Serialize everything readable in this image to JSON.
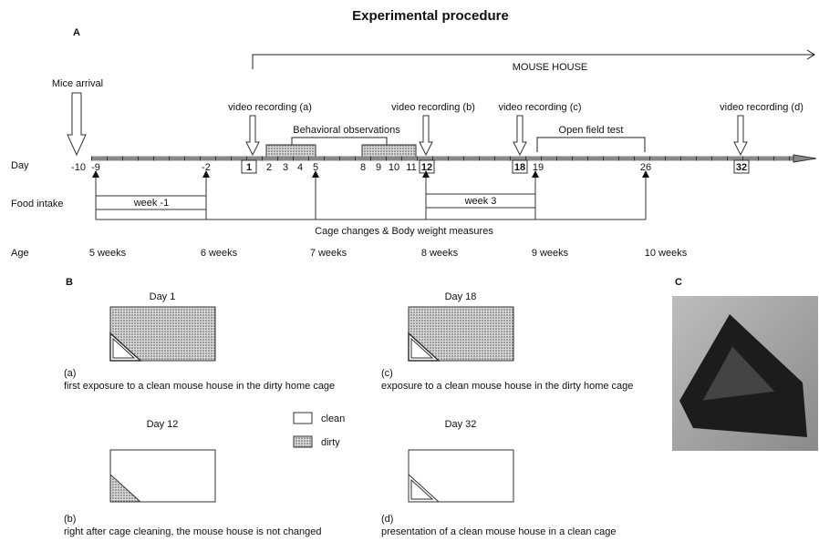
{
  "title": "Experimental procedure",
  "panel_a": {
    "label": "A",
    "mouse_house": "MOUSE HOUSE",
    "mice_arrival": "Mice arrival",
    "video_recordings": [
      "video recording (a)",
      "video recording (b)",
      "video recording (c)",
      "video recording (d)"
    ],
    "behavioral_observations": "Behavioral observations",
    "open_field_test": "Open field test",
    "row_labels": {
      "day": "Day",
      "food_intake": "Food intake",
      "age": "Age"
    },
    "days": [
      -10,
      -9,
      -2,
      1,
      2,
      3,
      4,
      5,
      8,
      9,
      10,
      11,
      12,
      18,
      19,
      26,
      32
    ],
    "food_intake_weeks": [
      "week -1",
      "week 3"
    ],
    "cage_changes": "Cage changes & Body weight measures",
    "ages": [
      "5 weeks",
      "6 weeks",
      "7 weeks",
      "8 weeks",
      "9 weeks",
      "10 weeks"
    ]
  },
  "panel_b": {
    "label": "B",
    "cages": [
      {
        "day": "Day 1",
        "letter": "(a)",
        "caption": "first exposure to a clean mouse house in the dirty home cage"
      },
      {
        "day": "Day 18",
        "letter": "(c)",
        "caption": "exposure to a clean mouse house in the dirty home cage"
      },
      {
        "day": "Day 12",
        "letter": "(b)",
        "caption": "right after cage cleaning, the mouse house is not changed"
      },
      {
        "day": "Day 32",
        "letter": "(d)",
        "caption": "presentation of a clean mouse house in a clean cage"
      }
    ],
    "legend": [
      "clean",
      "dirty"
    ]
  },
  "panel_c": {
    "label": "C"
  }
}
